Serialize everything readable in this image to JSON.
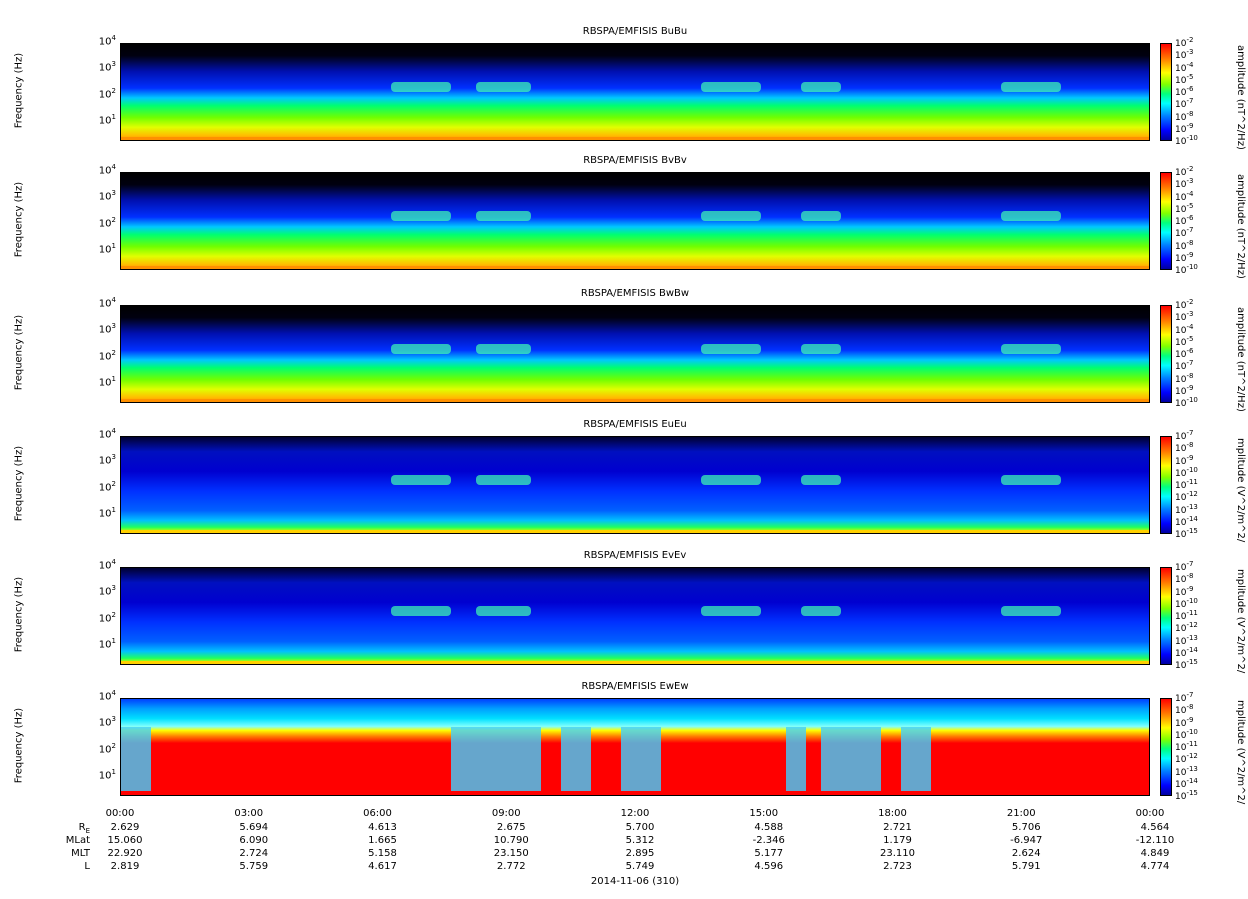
{
  "colorbar": {
    "mag_label": "amplitude (nT^2/Hz)",
    "mag_ticks": [
      "10",
      "10",
      "10",
      "10",
      "10",
      "10",
      "10",
      "10",
      "10"
    ],
    "mag_exps": [
      "-2",
      "-3",
      "-4",
      "-5",
      "-6",
      "-7",
      "-8",
      "-9",
      "-10"
    ],
    "elec_label": "mplitude (V^2/m^2/",
    "elec_exps": [
      "-7",
      "-8",
      "-9",
      "-10",
      "-11",
      "-12",
      "-13",
      "-14",
      "-15"
    ]
  },
  "yaxis": {
    "label": "Frequency (Hz)",
    "tick_exps": [
      "4",
      "3",
      "2",
      "1"
    ]
  },
  "xaxis": {
    "ticks": [
      "00:00",
      "03:00",
      "06:00",
      "09:00",
      "12:00",
      "15:00",
      "18:00",
      "21:00",
      "00:00"
    ],
    "date": "2014-11-06 (310)"
  },
  "ephemeris": {
    "labels": [
      "R",
      "MLat",
      "MLT",
      "L"
    ],
    "re_sub": "E",
    "rows": [
      [
        "2.629",
        "5.694",
        "4.613",
        "2.675",
        "5.700",
        "4.588",
        "2.721",
        "5.706",
        "4.564"
      ],
      [
        "15.060",
        "6.090",
        "1.665",
        "10.790",
        "5.312",
        "-2.346",
        "1.179",
        "-6.947",
        "-12.110"
      ],
      [
        "22.920",
        "2.724",
        "5.158",
        "23.150",
        "2.895",
        "5.177",
        "23.110",
        "2.624",
        "4.849"
      ],
      [
        "2.819",
        "5.759",
        "4.617",
        "2.772",
        "5.749",
        "4.596",
        "2.723",
        "5.791",
        "4.774"
      ]
    ]
  },
  "chart_data": [
    {
      "type": "heatmap",
      "title": "RBSPA/EMFISIS  BuBu",
      "ylabel": "Frequency (Hz)",
      "yscale": "log",
      "ylim": [
        2,
        10000
      ],
      "xlim": [
        "00:00",
        "00:00"
      ],
      "colorbar_label": "amplitude (nT^2/Hz)",
      "clim_exp": [
        -10,
        -2
      ]
    },
    {
      "type": "heatmap",
      "title": "RBSPA/EMFISIS  BvBv",
      "ylabel": "Frequency (Hz)",
      "yscale": "log",
      "ylim": [
        2,
        10000
      ],
      "xlim": [
        "00:00",
        "00:00"
      ],
      "colorbar_label": "amplitude (nT^2/Hz)",
      "clim_exp": [
        -10,
        -2
      ]
    },
    {
      "type": "heatmap",
      "title": "RBSPA/EMFISIS  BwBw",
      "ylabel": "Frequency (Hz)",
      "yscale": "log",
      "ylim": [
        2,
        10000
      ],
      "xlim": [
        "00:00",
        "00:00"
      ],
      "colorbar_label": "amplitude (nT^2/Hz)",
      "clim_exp": [
        -10,
        -2
      ]
    },
    {
      "type": "heatmap",
      "title": "RBSPA/EMFISIS  EuEu",
      "ylabel": "Frequency (Hz)",
      "yscale": "log",
      "ylim": [
        2,
        10000
      ],
      "xlim": [
        "00:00",
        "00:00"
      ],
      "colorbar_label": "mplitude (V^2/m^2/",
      "clim_exp": [
        -15,
        -7
      ]
    },
    {
      "type": "heatmap",
      "title": "RBSPA/EMFISIS  EvEv",
      "ylabel": "Frequency (Hz)",
      "yscale": "log",
      "ylim": [
        2,
        10000
      ],
      "xlim": [
        "00:00",
        "00:00"
      ],
      "colorbar_label": "mplitude (V^2/m^2/",
      "clim_exp": [
        -15,
        -7
      ]
    },
    {
      "type": "heatmap",
      "title": "RBSPA/EMFISIS  EwEw",
      "ylabel": "Frequency (Hz)",
      "yscale": "log",
      "ylim": [
        2,
        10000
      ],
      "xlim": [
        "00:00",
        "00:00"
      ],
      "colorbar_label": "mplitude (V^2/m^2/",
      "clim_exp": [
        -15,
        -7
      ]
    }
  ]
}
